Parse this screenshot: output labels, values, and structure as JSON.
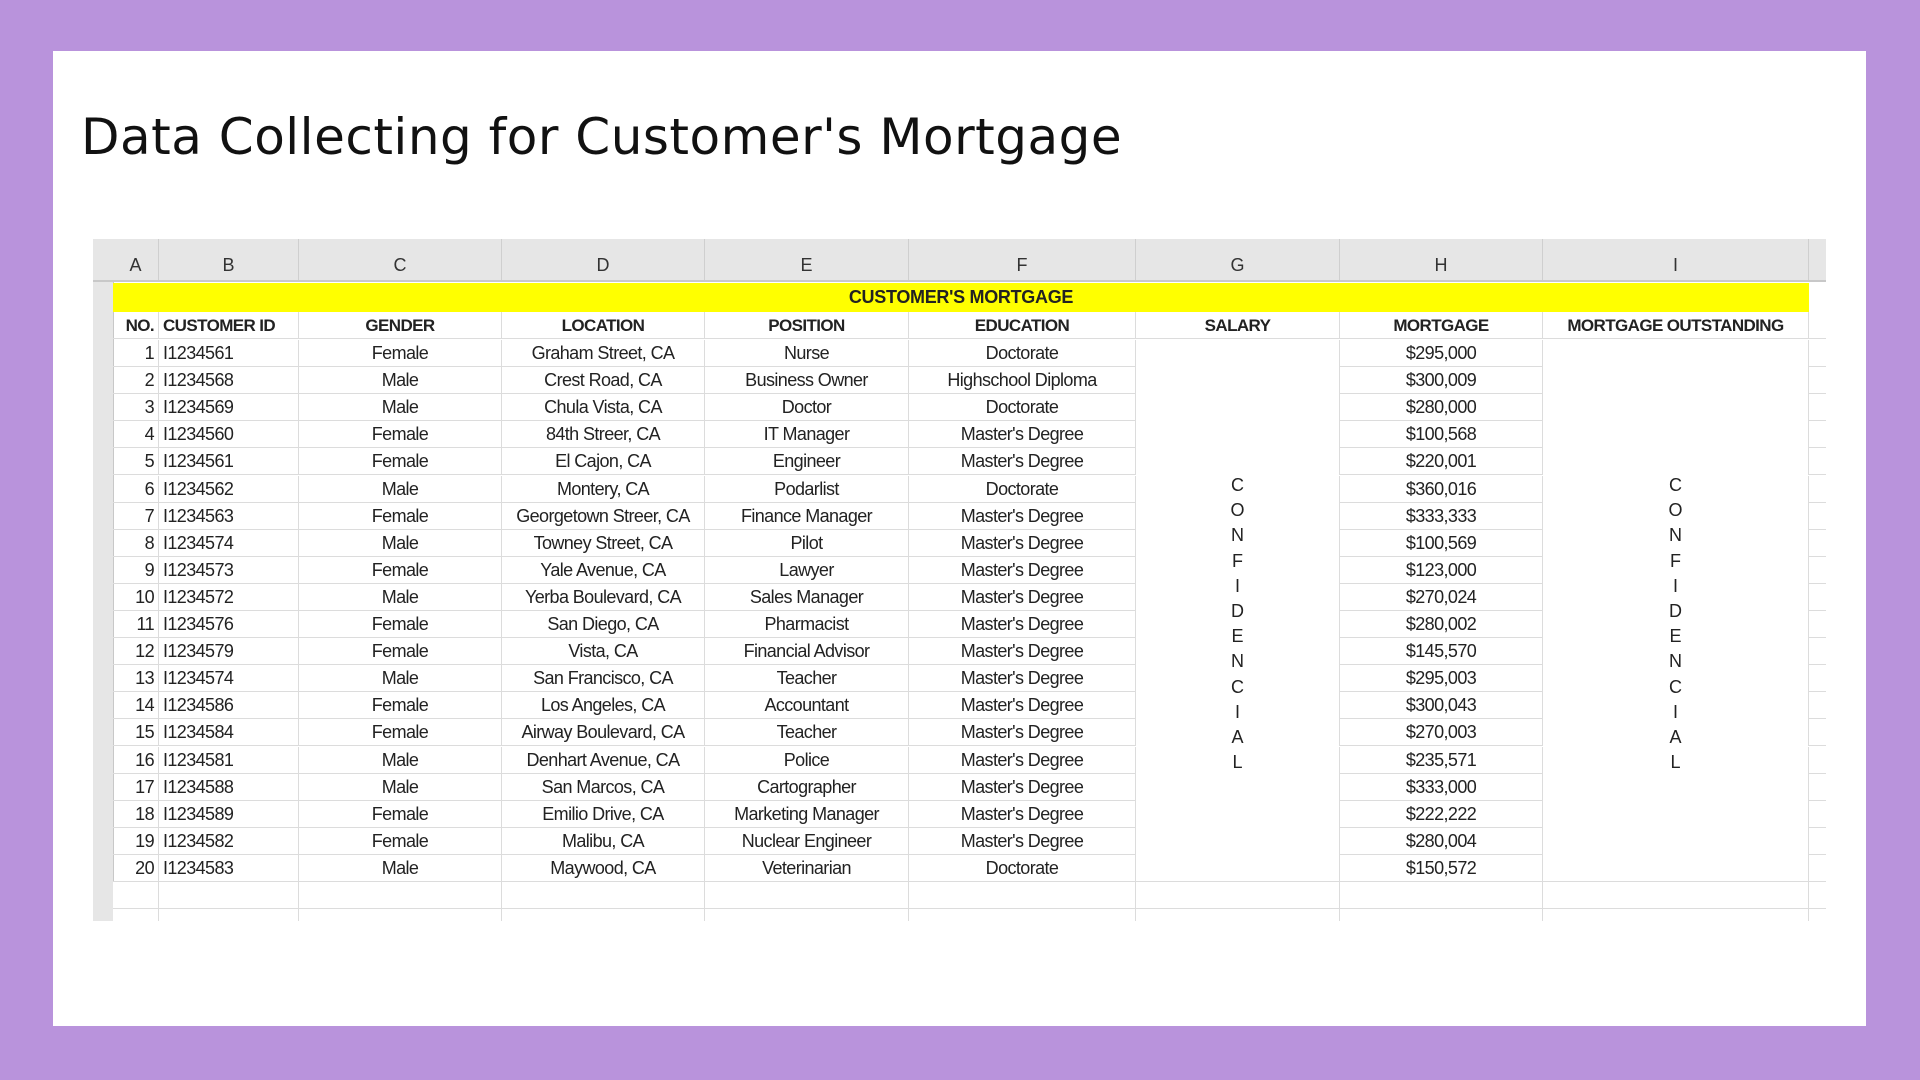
{
  "title": "Data Collecting for Customer's Mortgage",
  "sheet": {
    "column_letters": [
      "A",
      "B",
      "C",
      "D",
      "E",
      "F",
      "G",
      "H",
      "I"
    ],
    "banner": "CUSTOMER'S MORTGAGE",
    "headers": [
      "NO.",
      "CUSTOMER ID",
      "GENDER",
      "LOCATION",
      "POSITION",
      "EDUCATION",
      "SALARY",
      "MORTGAGE",
      "MORTGAGE OUTSTANDING"
    ],
    "confidential_text": "CONFIDENCIAL",
    "rows": [
      [
        "1",
        "I1234561",
        "Female",
        "Graham Street, CA",
        "Nurse",
        "Doctorate",
        "$295,000"
      ],
      [
        "2",
        "I1234568",
        "Male",
        "Crest Road, CA",
        "Business Owner",
        "Highschool Diploma",
        "$300,009"
      ],
      [
        "3",
        "I1234569",
        "Male",
        "Chula Vista, CA",
        "Doctor",
        "Doctorate",
        "$280,000"
      ],
      [
        "4",
        "I1234560",
        "Female",
        "84th Streer, CA",
        "IT Manager",
        "Master's Degree",
        "$100,568"
      ],
      [
        "5",
        "I1234561",
        "Female",
        "El Cajon, CA",
        "Engineer",
        "Master's Degree",
        "$220,001"
      ],
      [
        "6",
        "I1234562",
        "Male",
        "Montery, CA",
        "Podarlist",
        "Doctorate",
        "$360,016"
      ],
      [
        "7",
        "I1234563",
        "Female",
        "Georgetown Streer, CA",
        "Finance Manager",
        "Master's Degree",
        "$333,333"
      ],
      [
        "8",
        "I1234574",
        "Male",
        "Towney Street, CA",
        "Pilot",
        "Master's Degree",
        "$100,569"
      ],
      [
        "9",
        "I1234573",
        "Female",
        "Yale Avenue, CA",
        "Lawyer",
        "Master's Degree",
        "$123,000"
      ],
      [
        "10",
        "I1234572",
        "Male",
        "Yerba Boulevard, CA",
        "Sales Manager",
        "Master's Degree",
        "$270,024"
      ],
      [
        "11",
        "I1234576",
        "Female",
        "San Diego, CA",
        "Pharmacist",
        "Master's Degree",
        "$280,002"
      ],
      [
        "12",
        "I1234579",
        "Female",
        "Vista, CA",
        "Financial Advisor",
        "Master's Degree",
        "$145,570"
      ],
      [
        "13",
        "I1234574",
        "Male",
        "San Francisco, CA",
        "Teacher",
        "Master's Degree",
        "$295,003"
      ],
      [
        "14",
        "I1234586",
        "Female",
        "Los Angeles, CA",
        "Accountant",
        "Master's Degree",
        "$300,043"
      ],
      [
        "15",
        "I1234584",
        "Female",
        "Airway Boulevard, CA",
        "Teacher",
        "Master's Degree",
        "$270,003"
      ],
      [
        "16",
        "I1234581",
        "Male",
        "Denhart Avenue, CA",
        "Police",
        "Master's Degree",
        "$235,571"
      ],
      [
        "17",
        "I1234588",
        "Male",
        "San Marcos, CA",
        "Cartographer",
        "Master's Degree",
        "$333,000"
      ],
      [
        "18",
        "I1234589",
        "Female",
        "Emilio Drive, CA",
        "Marketing Manager",
        "Master's Degree",
        "$222,222"
      ],
      [
        "19",
        "I1234582",
        "Female",
        "Malibu, CA",
        "Nuclear Engineer",
        "Master's Degree",
        "$280,004"
      ],
      [
        "20",
        "I1234583",
        "Male",
        "Maywood, CA",
        "Veterinarian",
        "Doctorate",
        "$150,572"
      ]
    ]
  },
  "colors": {
    "background": "#b993dc",
    "banner": "#ffff00"
  }
}
